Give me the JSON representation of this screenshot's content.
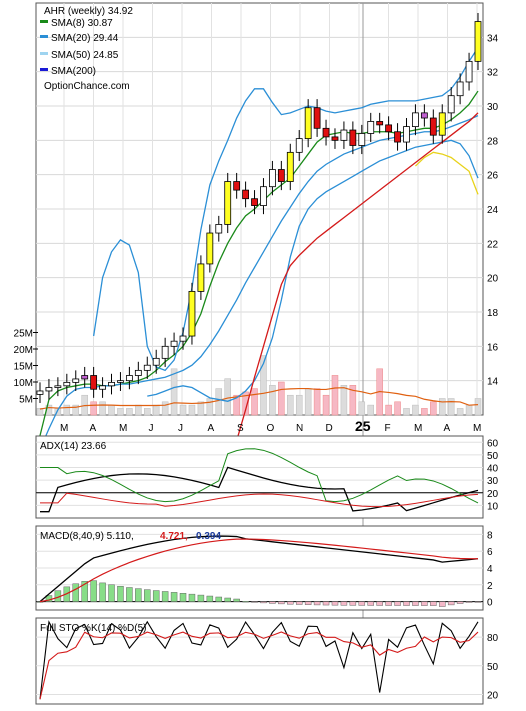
{
  "chart_data": {
    "type": "candlestick",
    "title": "AHR (weekly) 34.92",
    "source": "OptionChance.com",
    "price_axis": {
      "ylim": [
        12,
        36
      ],
      "ticks": [
        14,
        16,
        18,
        20,
        22,
        24,
        26,
        28,
        30,
        32,
        34
      ]
    },
    "volume_axis": {
      "ticks": [
        "5M",
        "10M",
        "15M",
        "20M",
        "25M"
      ],
      "tick_values": [
        5,
        10,
        15,
        20,
        25
      ],
      "ylim": [
        0,
        30
      ]
    },
    "x_labels": [
      "M",
      "A",
      "M",
      "J",
      "J",
      "A",
      "S",
      "O",
      "N",
      "D",
      "25",
      "F",
      "M",
      "A",
      "M"
    ],
    "legend": [
      {
        "label": "SMA(8) 30.87",
        "color": "#1a8a1a"
      },
      {
        "label": "SMA(20) 29.44",
        "color": "#2b8fd6"
      },
      {
        "label": "SMA(50) 24.85",
        "color": "#e8d21a"
      },
      {
        "label": "SMA(200)",
        "color": "#1a1ad6"
      }
    ],
    "candles_close": [
      13.4,
      13.6,
      13.7,
      13.9,
      14.1,
      14.3,
      13.5,
      13.7,
      13.9,
      14.0,
      14.3,
      14.6,
      14.9,
      15.3,
      16.0,
      16.3,
      16.6,
      19.2,
      20.8,
      22.6,
      23.1,
      25.6,
      25.1,
      24.6,
      24.2,
      25.3,
      26.3,
      25.6,
      27.3,
      28.1,
      29.9,
      28.7,
      28.2,
      28.0,
      28.6,
      27.7,
      28.4,
      29.1,
      28.9,
      28.5,
      27.9,
      28.8,
      29.6,
      29.3,
      28.3,
      29.6,
      30.6,
      31.4,
      32.6,
      34.92
    ],
    "series": [
      {
        "name": "SMA(8)",
        "color": "#1a8a1a",
        "values": [
          10.8,
          12.9,
          13.4,
          13.6,
          13.7,
          13.8,
          13.8,
          13.7,
          13.7,
          13.8,
          13.9,
          14.0,
          14.2,
          14.6,
          15.1,
          15.5,
          16.0,
          16.8,
          17.9,
          19.5,
          20.9,
          22.0,
          22.9,
          23.6,
          24.0,
          24.5,
          25.0,
          25.4,
          25.8,
          26.5,
          27.2,
          27.9,
          28.3,
          28.4,
          28.5,
          28.4,
          28.4,
          28.5,
          28.5,
          28.5,
          28.4,
          28.5,
          28.6,
          28.7,
          28.7,
          28.9,
          29.2,
          29.6,
          30.1,
          30.87
        ]
      },
      {
        "name": "SMA(20)",
        "color": "#2b8fd6",
        "values": [
          10.0,
          11.2,
          12.3,
          13.1,
          13.5,
          13.6,
          13.6,
          13.7,
          13.7,
          13.8,
          13.8,
          13.9,
          14.0,
          14.1,
          14.2,
          14.4,
          14.6,
          14.9,
          15.4,
          16.1,
          16.9,
          17.8,
          18.7,
          19.7,
          20.6,
          21.5,
          22.4,
          23.3,
          24.1,
          24.9,
          25.6,
          26.2,
          26.6,
          26.9,
          27.2,
          27.4,
          27.6,
          27.8,
          28.0,
          28.1,
          28.2,
          28.3,
          28.4,
          28.5,
          28.5,
          28.6,
          28.8,
          29.0,
          29.2,
          29.44
        ]
      },
      {
        "name": "SMA(20) upper band",
        "color": "#2b8fd6",
        "values": [
          null,
          null,
          null,
          null,
          null,
          null,
          16.6,
          20.0,
          21.5,
          22.2,
          21.9,
          20.3,
          16.0,
          14.8,
          14.6,
          15.2,
          16.8,
          19.4,
          22.8,
          25.4,
          26.8,
          28.0,
          29.3,
          30.3,
          31.0,
          31.0,
          30.2,
          29.5,
          29.6,
          29.8,
          30.0,
          29.9,
          29.7,
          29.6,
          29.7,
          29.8,
          29.9,
          30.1,
          30.2,
          30.3,
          30.3,
          30.3,
          30.3,
          30.4,
          30.5,
          30.6,
          31.0,
          31.7,
          32.6,
          33.4
        ]
      },
      {
        "name": "SMA(20) lower band",
        "color": "#2b8fd6",
        "values": [
          null,
          null,
          null,
          null,
          null,
          null,
          null,
          null,
          null,
          null,
          null,
          null,
          13.1,
          13.2,
          13.4,
          13.6,
          13.7,
          13.6,
          13.3,
          13.0,
          12.9,
          12.8,
          13.0,
          13.4,
          14.0,
          15.0,
          16.5,
          18.7,
          21.2,
          23.0,
          24.0,
          24.6,
          25.0,
          25.3,
          25.6,
          25.9,
          26.2,
          26.5,
          26.8,
          27.0,
          27.2,
          27.4,
          27.6,
          27.7,
          27.8,
          27.9,
          28.0,
          27.8,
          27.1,
          25.8
        ]
      },
      {
        "name": "SMA(50)",
        "color": "#e8d21a",
        "values": [
          null,
          null,
          null,
          null,
          null,
          null,
          null,
          null,
          null,
          null,
          null,
          null,
          null,
          null,
          null,
          null,
          null,
          null,
          null,
          null,
          null,
          null,
          null,
          null,
          null,
          null,
          null,
          null,
          null,
          null,
          null,
          null,
          null,
          null,
          null,
          null,
          null,
          null,
          null,
          null,
          null,
          null,
          26.5,
          27.0,
          27.3,
          27.2,
          27.0,
          26.6,
          26.2,
          24.85
        ]
      },
      {
        "name": "SMA(200)",
        "color": "#d41a1a",
        "values": [
          null,
          null,
          null,
          null,
          null,
          null,
          null,
          null,
          null,
          null,
          null,
          null,
          null,
          null,
          null,
          null,
          null,
          null,
          null,
          null,
          7.0,
          8.8,
          10.5,
          12.3,
          14.2,
          16.0,
          17.8,
          19.6,
          20.7,
          21.3,
          21.8,
          22.3,
          22.7,
          23.1,
          23.5,
          23.9,
          24.3,
          24.7,
          25.1,
          25.5,
          25.9,
          26.3,
          26.7,
          27.1,
          27.5,
          27.9,
          28.3,
          28.7,
          29.1,
          29.6
        ]
      }
    ],
    "volume_values": [
      2,
      3,
      2,
      3,
      3,
      6,
      4,
      4,
      3,
      2,
      2,
      3,
      2,
      3,
      4,
      14,
      3,
      3,
      4,
      5,
      8,
      11,
      6,
      7,
      8,
      18,
      9,
      10,
      6,
      6,
      8,
      8,
      6,
      12,
      9,
      9,
      4,
      3,
      14,
      3,
      4,
      2,
      3,
      2,
      4,
      5,
      5,
      2,
      3,
      5
    ],
    "indicators": [
      {
        "name": "ADX(14) 23.66",
        "ticks": [
          10,
          20,
          30,
          40,
          50,
          60
        ],
        "ylim": [
          0,
          65
        ]
      },
      {
        "name": "MACD(8,40,9) 5.110, 4.721, 0.394",
        "ticks": [
          0,
          2,
          4,
          6,
          8
        ],
        "ylim": [
          -1,
          9
        ]
      },
      {
        "name": "Full STO %K(14) %D(5)",
        "ticks": [
          20,
          50,
          80
        ],
        "ylim": [
          10,
          100
        ]
      }
    ]
  },
  "labels": {
    "title": "AHR (weekly) 34.92",
    "sma8": "SMA(8) 30.87",
    "sma20": "SMA(20) 29.44",
    "sma50": "SMA(50) 24.85",
    "sma200": "SMA(200)",
    "source": "OptionChance.com",
    "adx": "ADX(14) 23.66",
    "macd_name": "MACD(8,40,9) 5.110,",
    "macd_signal": "4.721,",
    "macd_hist": "0.394",
    "sto": "Full STO %K(14) %D(5)"
  },
  "colors": {
    "sma8": "#1a8a1a",
    "sma20": "#2b8fd6",
    "sma50": "#e8d21a",
    "sma200_legend": "#1a1ad6",
    "sma200_line": "#d41a1a",
    "macd_signal": "#d41a1a",
    "macd_hist": "#1a3a9a"
  }
}
